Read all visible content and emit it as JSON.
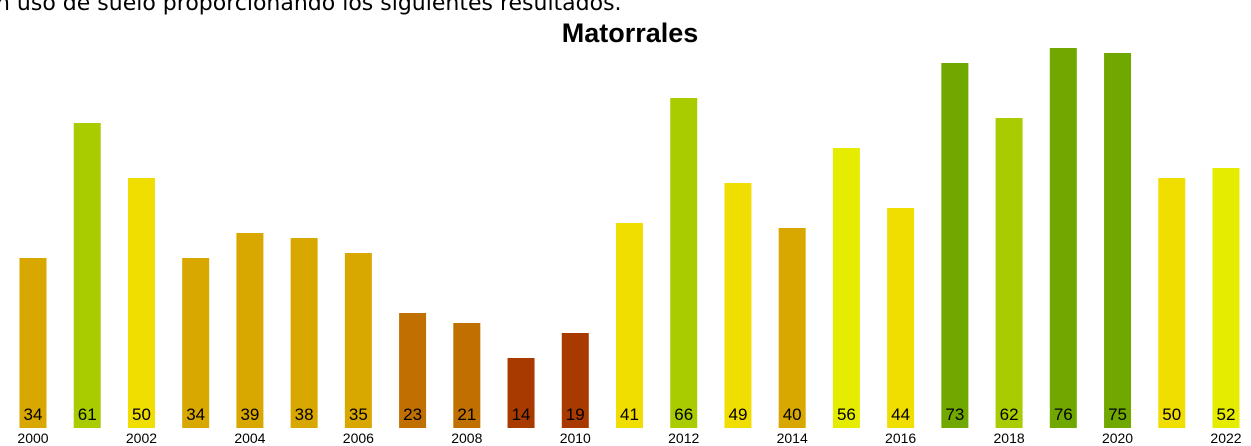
{
  "intro_text": "n uso de suelo proporcionando los siguientes resultados.",
  "chart_data": {
    "type": "bar",
    "title": "Matorrales",
    "categories": [
      "2000",
      null,
      "2002",
      null,
      "2004",
      null,
      "2006",
      null,
      "2008",
      null,
      "2010",
      null,
      "2012",
      null,
      "2014",
      null,
      "2016",
      null,
      "2018",
      null,
      "2020",
      null,
      "2022"
    ],
    "values": [
      34,
      61,
      50,
      34,
      39,
      38,
      35,
      23,
      21,
      14,
      19,
      41,
      66,
      49,
      40,
      56,
      44,
      73,
      62,
      76,
      75,
      50,
      52
    ],
    "colors": [
      "#d9a800",
      "#a8cc00",
      "#f0de00",
      "#d9a800",
      "#d9a800",
      "#d9a800",
      "#d9a800",
      "#c07000",
      "#c07000",
      "#a83a00",
      "#a83a00",
      "#f0de00",
      "#a8cc00",
      "#f0de00",
      "#d9a800",
      "#e6ec00",
      "#f0de00",
      "#70a800",
      "#a8cc00",
      "#70a800",
      "#70a800",
      "#f0de00",
      "#e6ec00"
    ]
  }
}
